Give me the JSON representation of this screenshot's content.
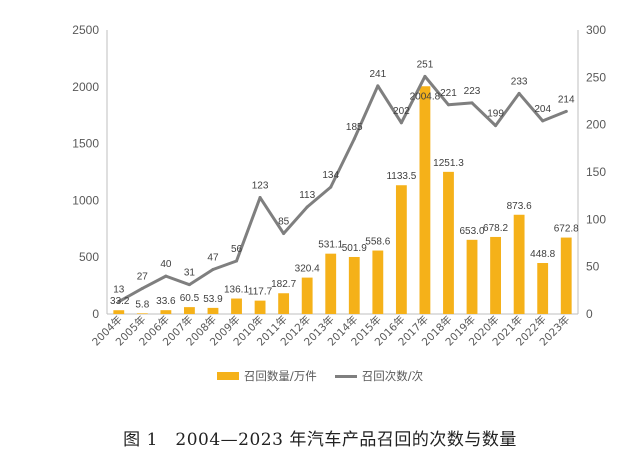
{
  "chart_data": {
    "type": "bar+line",
    "title": "图 1　2004—2023 年汽车产品召回的次数与数量",
    "categories": [
      "2004年",
      "2005年",
      "2006年",
      "2007年",
      "2008年",
      "2009年",
      "2010年",
      "2011年",
      "2012年",
      "2013年",
      "2014年",
      "2015年",
      "2016年",
      "2017年",
      "2018年",
      "2019年",
      "2020年",
      "2021年",
      "2022年",
      "2023年"
    ],
    "series": [
      {
        "name": "召回数量/万件",
        "type": "bar",
        "axis": "left",
        "color": "#F5B119",
        "values": [
          33.2,
          5.8,
          33.6,
          60.5,
          53.9,
          136.1,
          117.7,
          182.7,
          320.4,
          531.1,
          501.9,
          558.6,
          1133.5,
          2004.8,
          1251.3,
          653.0,
          678.2,
          873.6,
          448.8,
          672.8
        ],
        "labels": [
          "33.2",
          "5.8",
          "33.6",
          "60.5",
          "53.9",
          "136.1",
          "117.7",
          "182.7",
          "320.4",
          "531.1",
          "501.9",
          "558.6",
          "1133.5",
          "2004.8",
          "1251.3",
          "653.0",
          "678.2",
          "873.6",
          "448.8",
          "672.8"
        ]
      },
      {
        "name": "召回次数/次",
        "type": "line",
        "axis": "right",
        "color": "#7F7F7F",
        "values": [
          13,
          27,
          40,
          31,
          47,
          56,
          123,
          85,
          113,
          134,
          185,
          241,
          202,
          251,
          221,
          223,
          199,
          233,
          204,
          214
        ]
      }
    ],
    "y_left": {
      "range": [
        0,
        2500
      ],
      "ticks": [
        "0",
        "500",
        "1000",
        "1500",
        "2000",
        "2500"
      ]
    },
    "y_right": {
      "range": [
        0,
        300
      ],
      "ticks": [
        "0",
        "50",
        "100",
        "150",
        "200",
        "250",
        "300"
      ]
    },
    "grid": false,
    "legend": "bottom"
  }
}
